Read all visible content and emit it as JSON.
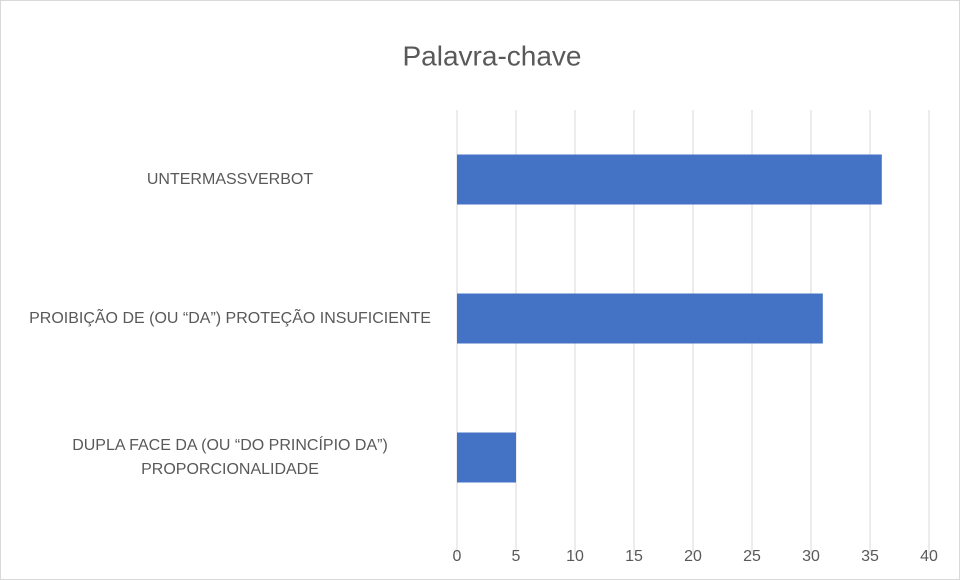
{
  "chart_data": {
    "type": "bar",
    "orientation": "horizontal",
    "title": "Palavra-chave",
    "categories": [
      "UNTERMASSVERBOT",
      "PROIBIÇÃO DE (OU “DA”) PROTEÇÃO INSUFICIENTE",
      "DUPLA FACE DA (OU “DO PRINCÍPIO DA”) PROPORCIONALIDADE"
    ],
    "values": [
      36,
      31,
      5
    ],
    "color": "#4472c4",
    "xlim": [
      0,
      40
    ],
    "xticks": [
      0,
      5,
      10,
      15,
      20,
      25,
      30,
      35,
      40
    ],
    "grid": true
  }
}
